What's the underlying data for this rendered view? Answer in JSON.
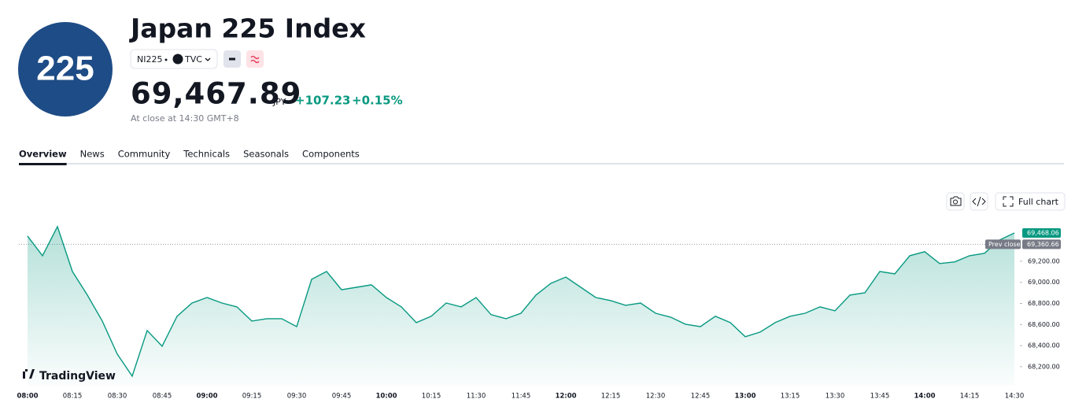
{
  "header": {
    "logo": "225",
    "title": "Japan 225 Index",
    "symbol": "NI225",
    "exchange": "TVC",
    "price": "69,467.89",
    "currency": "JPY",
    "change": "+107.23",
    "change_percent": "+0.15%",
    "status": "At close at 14:30 GMT+8"
  },
  "tabs": [
    "Overview",
    "News",
    "Community",
    "Technicals",
    "Seasonals",
    "Components"
  ],
  "toolbar": {
    "full_chart": "Full chart"
  },
  "branding": "TradingView",
  "chart_data": {
    "type": "area",
    "color": "#089981",
    "categories": [
      "08:00",
      null,
      null,
      "08:15",
      null,
      null,
      "08:30",
      null,
      null,
      "08:45",
      null,
      null,
      "09:00",
      null,
      null,
      "09:15",
      null,
      null,
      "09:30",
      null,
      null,
      "09:45",
      null,
      null,
      "10:00",
      null,
      null,
      "10:15",
      null,
      null,
      "11:30",
      null,
      null,
      "11:45",
      null,
      null,
      "12:00",
      null,
      null,
      "12:15",
      null,
      null,
      "12:30",
      null,
      null,
      "12:45",
      null,
      null,
      "13:00",
      null,
      null,
      "13:15",
      null,
      null,
      "13:30",
      null,
      null,
      "13:45",
      null,
      null,
      "14:00",
      null,
      null,
      "14:15",
      null,
      null,
      "14:30"
    ],
    "values": [
      69439,
      69252,
      69528,
      69103,
      68879,
      68633,
      68319,
      68110,
      68543,
      68394,
      68678,
      68804,
      68856,
      68804,
      68767,
      68633,
      68655,
      68655,
      68580,
      69028,
      69103,
      68930,
      68953,
      68976,
      68856,
      68767,
      68618,
      68678,
      68804,
      68767,
      68856,
      68693,
      68655,
      68707,
      68879,
      68990,
      69050,
      68953,
      68856,
      68827,
      68782,
      68804,
      68707,
      68670,
      68603,
      68580,
      68678,
      68618,
      68484,
      68528,
      68618,
      68678,
      68707,
      68767,
      68730,
      68879,
      68901,
      69103,
      69080,
      69252,
      69290,
      69178,
      69193,
      69252,
      69275,
      69401,
      69468.06
    ],
    "last_value_label": "69,468.06",
    "prev_close": {
      "label": "Prev close",
      "value": 69360.66,
      "value_label": "69,360.66"
    },
    "ylim": [
      68020,
      69550
    ],
    "yticks": [
      {
        "value": 68200,
        "label": "68,200.00"
      },
      {
        "value": 68400,
        "label": "68,400.00"
      },
      {
        "value": 68600,
        "label": "68,600.00"
      },
      {
        "value": 68800,
        "label": "68,800.00"
      },
      {
        "value": 69000,
        "label": "69,000.00"
      },
      {
        "value": 69200,
        "label": "69,200.00"
      }
    ]
  }
}
